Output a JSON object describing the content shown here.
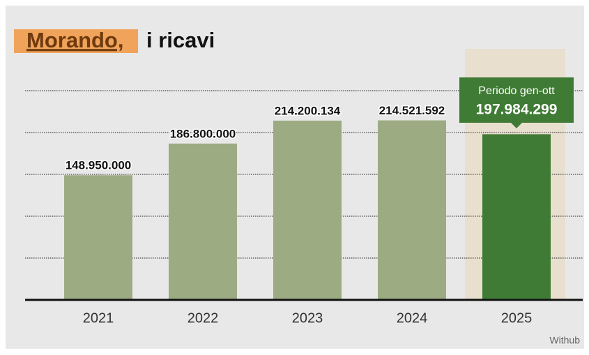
{
  "chart_data": {
    "type": "bar",
    "title_highlight": "Morando,",
    "title": "i ricavi",
    "categories": [
      "2021",
      "2022",
      "2023",
      "2024",
      "2025"
    ],
    "values": [
      148950000,
      186800000,
      214200134,
      214521592,
      197984299
    ],
    "value_labels": [
      "148.950.000",
      "186.800.000",
      "214.200.134",
      "214.521.592",
      "197.984.299"
    ],
    "colors": [
      "#9dab83",
      "#9dab83",
      "#9dab83",
      "#9dab83",
      "#3f7b34"
    ],
    "annotation": "Periodo gen-ott",
    "ylim": [
      0,
      250000000
    ],
    "yticks": [
      0,
      50000000,
      100000000,
      150000000,
      200000000,
      250000000
    ],
    "grid": true,
    "source": "Withub"
  }
}
